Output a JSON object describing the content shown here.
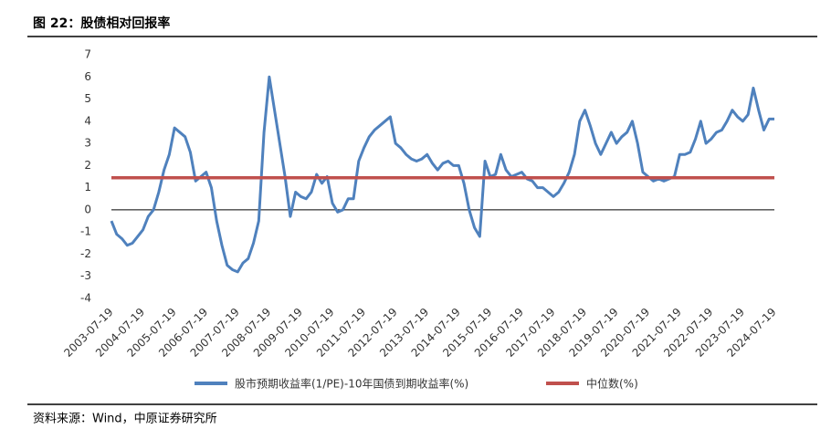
{
  "chart_data": {
    "type": "line",
    "title": "图 22：股债相对回报率",
    "source": "资料来源：Wind，中原证券研究所",
    "categories": [
      "2003-07-19",
      null,
      null,
      null,
      null,
      null,
      "2004-07-19",
      null,
      null,
      null,
      null,
      null,
      "2005-07-19",
      null,
      null,
      null,
      null,
      null,
      "2006-07-19",
      null,
      null,
      null,
      null,
      null,
      "2007-07-19",
      null,
      null,
      null,
      null,
      null,
      "2008-07-19",
      null,
      null,
      null,
      null,
      null,
      "2009-07-19",
      null,
      null,
      null,
      null,
      null,
      "2010-07-19",
      null,
      null,
      null,
      null,
      null,
      "2011-07-19",
      null,
      null,
      null,
      null,
      null,
      "2012-07-19",
      null,
      null,
      null,
      null,
      null,
      "2013-07-19",
      null,
      null,
      null,
      null,
      null,
      "2014-07-19",
      null,
      null,
      null,
      null,
      null,
      "2015-07-19",
      null,
      null,
      null,
      null,
      null,
      "2016-07-19",
      null,
      null,
      null,
      null,
      null,
      "2017-07-19",
      null,
      null,
      null,
      null,
      null,
      "2018-07-19",
      null,
      null,
      null,
      null,
      null,
      "2019-07-19",
      null,
      null,
      null,
      null,
      null,
      "2020-07-19",
      null,
      null,
      null,
      null,
      null,
      "2021-07-19",
      null,
      null,
      null,
      null,
      null,
      "2022-07-19",
      null,
      null,
      null,
      null,
      null,
      "2023-07-19",
      null,
      null,
      null,
      null,
      null,
      "2024-07-19"
    ],
    "series": [
      {
        "name": "股市预期收益率(1/PE)-10年国债到期收益率(%)",
        "color": "#4f81bd",
        "values": [
          -0.5,
          -1.1,
          -1.3,
          -1.6,
          -1.5,
          -1.2,
          -0.9,
          -0.3,
          0.0,
          0.8,
          1.8,
          2.5,
          3.7,
          3.5,
          3.3,
          2.6,
          1.3,
          1.5,
          1.7,
          1.0,
          -0.5,
          -1.6,
          -2.5,
          -2.7,
          -2.8,
          -2.4,
          -2.2,
          -1.5,
          -0.5,
          3.5,
          6.0,
          4.5,
          3.0,
          1.5,
          -0.3,
          0.8,
          0.6,
          0.5,
          0.8,
          1.6,
          1.2,
          1.5,
          0.3,
          -0.1,
          0.0,
          0.5,
          0.5,
          2.2,
          2.8,
          3.3,
          3.6,
          3.8,
          4.0,
          4.2,
          3.0,
          2.8,
          2.5,
          2.3,
          2.2,
          2.3,
          2.5,
          2.1,
          1.8,
          2.1,
          2.2,
          2.0,
          2.0,
          1.2,
          0.0,
          -0.8,
          -1.2,
          2.2,
          1.5,
          1.6,
          2.5,
          1.8,
          1.5,
          1.6,
          1.7,
          1.4,
          1.3,
          1.0,
          1.0,
          0.8,
          0.6,
          0.8,
          1.2,
          1.7,
          2.5,
          4.0,
          4.5,
          3.8,
          3.0,
          2.5,
          3.0,
          3.5,
          3.0,
          3.3,
          3.5,
          4.0,
          3.0,
          1.7,
          1.5,
          1.3,
          1.4,
          1.3,
          1.4,
          1.5,
          2.5,
          2.5,
          2.6,
          3.2,
          4.0,
          3.0,
          3.2,
          3.5,
          3.6,
          4.0,
          4.5,
          4.2,
          4.0,
          4.3,
          5.5,
          4.5,
          3.6,
          4.1,
          4.1
        ]
      },
      {
        "name": "中位数(%)",
        "color": "#c0504d",
        "values": [
          1.45,
          1.45,
          1.45,
          1.45,
          1.45,
          1.45,
          1.45,
          1.45,
          1.45,
          1.45,
          1.45,
          1.45,
          1.45,
          1.45,
          1.45,
          1.45,
          1.45,
          1.45,
          1.45,
          1.45,
          1.45,
          1.45,
          1.45,
          1.45,
          1.45,
          1.45,
          1.45,
          1.45,
          1.45,
          1.45,
          1.45,
          1.45,
          1.45,
          1.45,
          1.45,
          1.45,
          1.45,
          1.45,
          1.45,
          1.45,
          1.45,
          1.45,
          1.45,
          1.45,
          1.45,
          1.45,
          1.45,
          1.45,
          1.45,
          1.45,
          1.45,
          1.45,
          1.45,
          1.45,
          1.45,
          1.45,
          1.45,
          1.45,
          1.45,
          1.45,
          1.45,
          1.45,
          1.45,
          1.45,
          1.45,
          1.45,
          1.45,
          1.45,
          1.45,
          1.45,
          1.45,
          1.45,
          1.45,
          1.45,
          1.45,
          1.45,
          1.45,
          1.45,
          1.45,
          1.45,
          1.45,
          1.45,
          1.45,
          1.45,
          1.45,
          1.45,
          1.45,
          1.45,
          1.45,
          1.45,
          1.45,
          1.45,
          1.45,
          1.45,
          1.45,
          1.45,
          1.45,
          1.45,
          1.45,
          1.45,
          1.45,
          1.45,
          1.45,
          1.45,
          1.45,
          1.45,
          1.45,
          1.45,
          1.45,
          1.45,
          1.45,
          1.45,
          1.45,
          1.45,
          1.45,
          1.45,
          1.45,
          1.45,
          1.45,
          1.45,
          1.45,
          1.45,
          1.45,
          1.45,
          1.45,
          1.45,
          1.45
        ]
      }
    ],
    "ylim": [
      -4,
      7
    ],
    "yticks": [
      -4,
      -3,
      -2,
      -1,
      0,
      1,
      2,
      3,
      4,
      5,
      6,
      7
    ],
    "grid": false
  }
}
